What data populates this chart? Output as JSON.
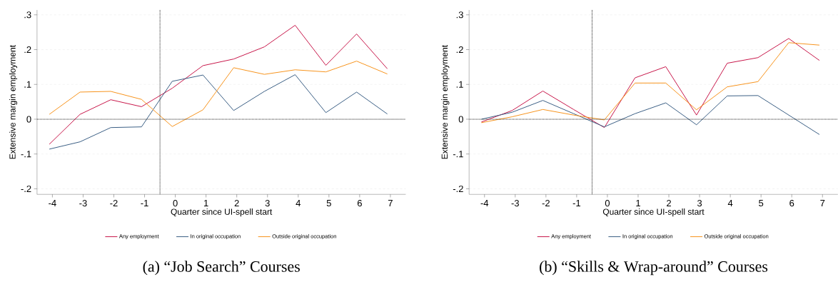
{
  "chart_data": [
    {
      "type": "line",
      "title": "(a) “Job Search” Courses",
      "xlabel": "Quarter since UI-spell start",
      "ylabel": "Extensive margin employment",
      "x": [
        -4.1,
        -3.1,
        -2.1,
        -1.1,
        -0.1,
        0.9,
        1.9,
        2.9,
        3.9,
        4.9,
        5.9,
        6.9
      ],
      "xlim": [
        -4.5,
        7.5
      ],
      "xticks": [
        -4,
        -3,
        -2,
        -1,
        0,
        1,
        2,
        3,
        4,
        5,
        6,
        7
      ],
      "ylim": [
        -0.216,
        0.314
      ],
      "yticks": [
        {
          "value": -0.2,
          "label": "-.2"
        },
        {
          "value": -0.1,
          "label": "-.1"
        },
        0,
        {
          "value": 0.1,
          "label": ".1"
        },
        {
          "value": 0.2,
          "label": ".2"
        },
        {
          "value": 0.3,
          "label": ".3"
        }
      ],
      "grid": "y",
      "legend": "bottom",
      "line_style": "solid",
      "ref_lines": [
        {
          "axis": "y",
          "value": 0,
          "line_style": "dotted",
          "color": "#000000"
        },
        {
          "axis": "x",
          "value": -0.5,
          "line_style": "dotted",
          "color": "#000000"
        }
      ],
      "series": [
        {
          "name": "Any employment",
          "color": "#c8174a",
          "values": [
            -0.072,
            0.014,
            0.056,
            0.036,
            0.089,
            0.154,
            0.173,
            0.208,
            0.27,
            0.155,
            0.245,
            0.145
          ]
        },
        {
          "name": "In original occupation",
          "color": "#3b5f85",
          "values": [
            -0.086,
            -0.065,
            -0.024,
            -0.022,
            0.109,
            0.127,
            0.025,
            0.08,
            0.128,
            0.019,
            0.078,
            0.015
          ]
        },
        {
          "name": "Outside original occupation",
          "color": "#f7941d",
          "values": [
            0.014,
            0.078,
            0.08,
            0.057,
            -0.021,
            0.027,
            0.148,
            0.129,
            0.142,
            0.136,
            0.167,
            0.13
          ]
        }
      ]
    },
    {
      "type": "line",
      "title": "(b) “Skills & Wrap-around” Courses",
      "xlabel": "Quarter since UI-spell start",
      "ylabel": "Extensive margin employment",
      "x": [
        -4.1,
        -3.1,
        -2.1,
        -1.1,
        -0.1,
        0.9,
        1.9,
        2.9,
        3.9,
        4.9,
        5.9,
        6.9
      ],
      "xlim": [
        -4.5,
        7.5
      ],
      "xticks": [
        -4,
        -3,
        -2,
        -1,
        0,
        1,
        2,
        3,
        4,
        5,
        6,
        7
      ],
      "ylim": [
        -0.216,
        0.314
      ],
      "yticks": [
        {
          "value": -0.2,
          "label": "-.2"
        },
        {
          "value": -0.1,
          "label": "-.1"
        },
        0,
        {
          "value": 0.1,
          "label": ".1"
        },
        {
          "value": 0.2,
          "label": ".2"
        },
        {
          "value": 0.3,
          "label": ".3"
        }
      ],
      "grid": "y",
      "legend": "bottom",
      "line_style": "solid",
      "ref_lines": [
        {
          "axis": "y",
          "value": 0,
          "line_style": "dotted",
          "color": "#000000"
        },
        {
          "axis": "x",
          "value": -0.5,
          "line_style": "dotted",
          "color": "#000000"
        }
      ],
      "series": [
        {
          "name": "Any employment",
          "color": "#c8174a",
          "values": [
            -0.008,
            0.025,
            0.081,
            0.028,
            -0.024,
            0.119,
            0.151,
            0.012,
            0.161,
            0.177,
            0.232,
            0.169
          ]
        },
        {
          "name": "In original occupation",
          "color": "#3b5f85",
          "values": [
            0.0,
            0.02,
            0.054,
            0.016,
            -0.022,
            0.016,
            0.047,
            -0.016,
            0.067,
            0.068,
            0.012,
            -0.044
          ]
        },
        {
          "name": "Outside original occupation",
          "color": "#f7941d",
          "values": [
            -0.01,
            0.007,
            0.028,
            0.012,
            -0.002,
            0.104,
            0.104,
            0.027,
            0.093,
            0.108,
            0.22,
            0.213
          ]
        }
      ]
    }
  ]
}
